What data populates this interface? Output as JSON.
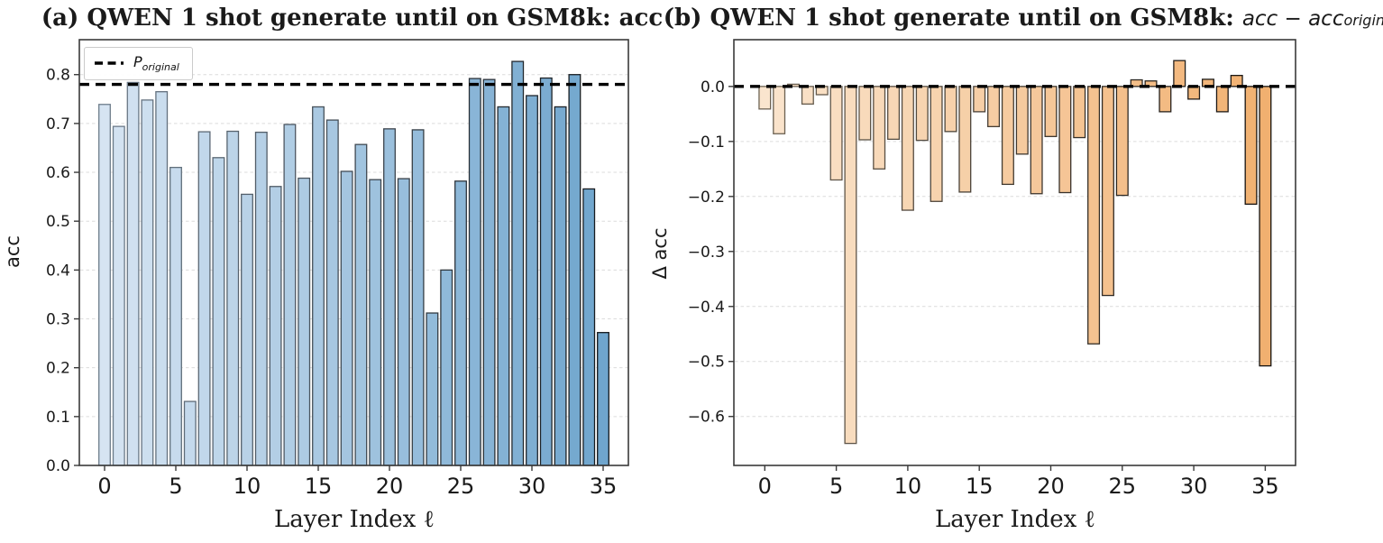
{
  "figure": {
    "shared_xlabel": "Layer Index ℓ",
    "legend": {
      "prefix": "P",
      "sub": "original"
    }
  },
  "chart_data": [
    {
      "type": "bar",
      "panel": "a",
      "title": "(a) QWEN 1 shot generate until on GSM8k: acc",
      "title_math": "",
      "title_math_sub": "",
      "xlabel": "Layer Index ℓ",
      "ylabel": "acc",
      "x": [
        0,
        1,
        2,
        3,
        4,
        5,
        6,
        7,
        8,
        9,
        10,
        11,
        12,
        13,
        14,
        15,
        16,
        17,
        18,
        19,
        20,
        21,
        22,
        23,
        24,
        25,
        26,
        27,
        28,
        29,
        30,
        31,
        32,
        33,
        34,
        35
      ],
      "values": [
        0.739,
        0.694,
        0.784,
        0.748,
        0.765,
        0.61,
        0.131,
        0.683,
        0.63,
        0.684,
        0.555,
        0.682,
        0.571,
        0.698,
        0.588,
        0.734,
        0.707,
        0.602,
        0.657,
        0.585,
        0.689,
        0.587,
        0.687,
        0.312,
        0.4,
        0.582,
        0.792,
        0.79,
        0.734,
        0.827,
        0.757,
        0.793,
        0.734,
        0.8,
        0.566,
        0.272
      ],
      "ylim": [
        0,
        0.8715
      ],
      "yticks": [
        0.0,
        0.1,
        0.2,
        0.3,
        0.4,
        0.5,
        0.6,
        0.7,
        0.8
      ],
      "ytick_labels": [
        "0.0",
        "0.1",
        "0.2",
        "0.3",
        "0.4",
        "0.5",
        "0.6",
        "0.7",
        "0.8"
      ],
      "xticks": [
        0,
        5,
        10,
        15,
        20,
        25,
        30,
        35
      ],
      "xtick_labels": [
        "0",
        "5",
        "10",
        "15",
        "20",
        "25",
        "30",
        "35"
      ],
      "grid": true,
      "legend_position": "upper left",
      "ref_line": {
        "label": "P_original",
        "value": 0.78
      },
      "colors": {
        "bar_start": "#d6e4f2",
        "bar_end": "#6fa5cd",
        "edge_start": "#6e7d8b",
        "edge_end": "#14181c",
        "ref": "#000000",
        "grid": "#dcdcdc"
      }
    },
    {
      "type": "bar",
      "panel": "b",
      "title": "(b) QWEN 1 shot generate until on GSM8k:",
      "title_math": "acc − acc",
      "title_math_sub": "original",
      "xlabel": "Layer Index ℓ",
      "ylabel": "Δ acc",
      "x": [
        0,
        1,
        2,
        3,
        4,
        5,
        6,
        7,
        8,
        9,
        10,
        11,
        12,
        13,
        14,
        15,
        16,
        17,
        18,
        19,
        20,
        21,
        22,
        23,
        24,
        25,
        26,
        27,
        28,
        29,
        30,
        31,
        32,
        33,
        34,
        35
      ],
      "values": [
        -0.041,
        -0.086,
        0.004,
        -0.032,
        -0.015,
        -0.17,
        -0.649,
        -0.097,
        -0.15,
        -0.096,
        -0.225,
        -0.098,
        -0.209,
        -0.082,
        -0.192,
        -0.046,
        -0.073,
        -0.178,
        -0.123,
        -0.195,
        -0.091,
        -0.193,
        -0.093,
        -0.468,
        -0.38,
        -0.198,
        0.012,
        0.01,
        -0.046,
        0.047,
        -0.023,
        0.013,
        -0.046,
        0.02,
        -0.214,
        -0.508
      ],
      "ylim": [
        -0.689,
        0.085
      ],
      "yticks": [
        0.0,
        -0.1,
        -0.2,
        -0.3,
        -0.4,
        -0.5,
        -0.6
      ],
      "ytick_labels": [
        "0.0",
        "−0.1",
        "−0.2",
        "−0.3",
        "−0.4",
        "−0.5",
        "−0.6"
      ],
      "xticks": [
        0,
        5,
        10,
        15,
        20,
        25,
        30,
        35
      ],
      "xtick_labels": [
        "0",
        "5",
        "10",
        "15",
        "20",
        "25",
        "30",
        "35"
      ],
      "grid": true,
      "ref_line": {
        "label": "zero",
        "value": 0.0
      },
      "colors": {
        "bar_start": "#fae5ce",
        "bar_end": "#f1b070",
        "edge_start": "#6e6354",
        "edge_end": "#151210",
        "ref": "#000000",
        "grid": "#dcdcdc"
      }
    }
  ]
}
